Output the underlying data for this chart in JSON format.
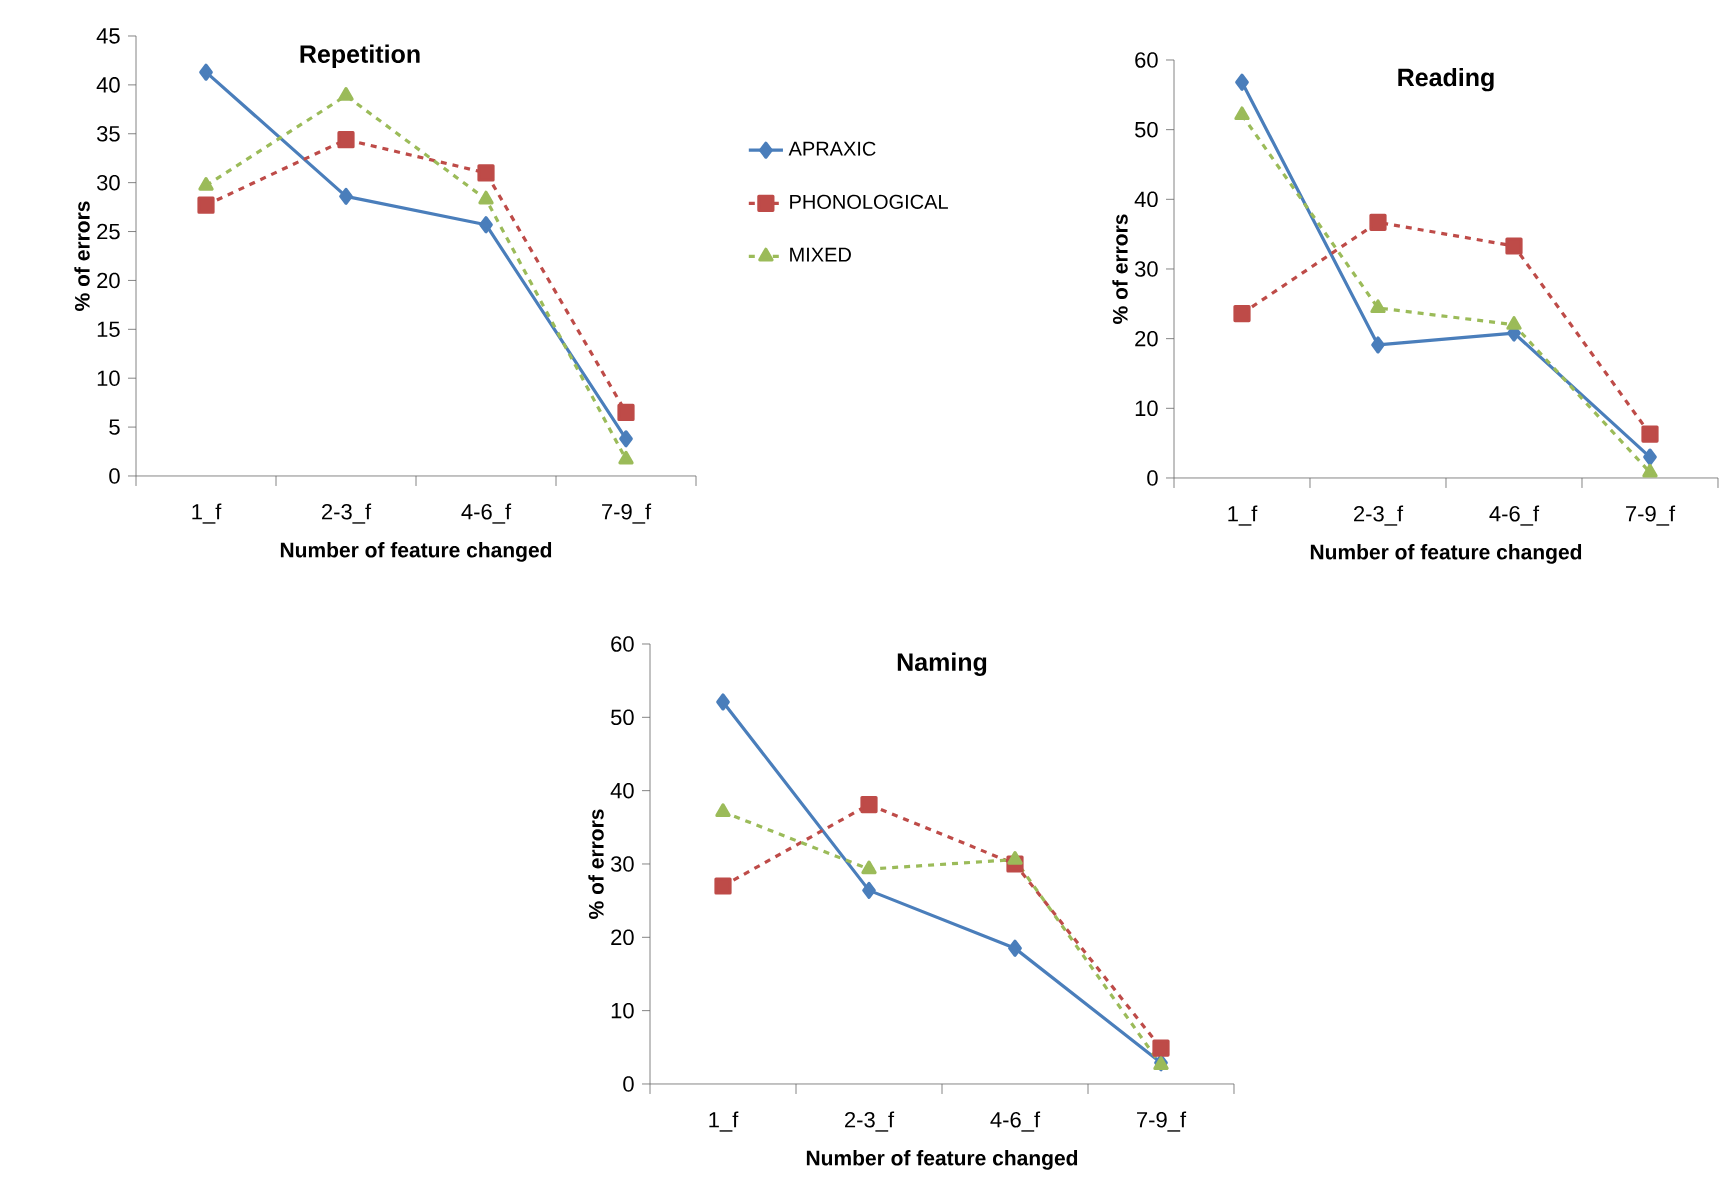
{
  "chart_data": [
    {
      "type": "line",
      "title": "Repetition",
      "xlabel": "Number of  feature changed",
      "ylabel": "% of errors",
      "categories": [
        "1_f",
        "2-3_f",
        "4-6_f",
        "7-9_f"
      ],
      "ylim": [
        0,
        45
      ],
      "yticks": [
        0,
        5,
        10,
        15,
        20,
        25,
        30,
        35,
        40,
        45
      ],
      "legend": "right",
      "series": [
        {
          "name": "APRAXIC",
          "color": "#4a7ebb",
          "marker": "diamond",
          "line_style": "solid",
          "values": [
            41.3,
            28.6,
            25.7,
            3.8
          ]
        },
        {
          "name": "PHONOLOGICAL",
          "color": "#be4b48",
          "marker": "square",
          "line_style": "dashed",
          "values": [
            27.7,
            34.4,
            31.0,
            6.5
          ]
        },
        {
          "name": "MIXED",
          "color": "#9bbb59",
          "marker": "triangle",
          "line_style": "dashed",
          "values": [
            29.7,
            38.9,
            28.3,
            1.7
          ]
        }
      ]
    },
    {
      "type": "line",
      "title": "Reading",
      "xlabel": "Number of  feature changed",
      "ylabel": "% of errors",
      "categories": [
        "1_f",
        "2-3_f",
        "4-6_f",
        "7-9_f"
      ],
      "ylim": [
        0,
        60
      ],
      "yticks": [
        0,
        10,
        20,
        30,
        40,
        50,
        60
      ],
      "series": [
        {
          "color": "#4a7ebb",
          "marker": "diamond",
          "line_style": "solid",
          "values": [
            56.8,
            19.1,
            20.8,
            3.0
          ]
        },
        {
          "color": "#be4b48",
          "marker": "square",
          "line_style": "dashed",
          "values": [
            23.6,
            36.7,
            33.3,
            6.3
          ]
        },
        {
          "color": "#9bbb59",
          "marker": "triangle",
          "line_style": "dashed",
          "values": [
            52.1,
            24.4,
            22.0,
            0.8
          ]
        }
      ]
    },
    {
      "type": "line",
      "title": "Naming",
      "xlabel": "Number of  feature changed",
      "ylabel": "% of errors",
      "categories": [
        "1_f",
        "2-3_f",
        "4-6_f",
        "7-9_f"
      ],
      "ylim": [
        0,
        60
      ],
      "yticks": [
        0,
        10,
        20,
        30,
        40,
        50,
        60
      ],
      "series": [
        {
          "color": "#4a7ebb",
          "marker": "diamond",
          "line_style": "solid",
          "values": [
            52.1,
            26.4,
            18.5,
            2.9
          ]
        },
        {
          "color": "#be4b48",
          "marker": "square",
          "line_style": "dashed",
          "values": [
            27.0,
            38.1,
            30.0,
            4.9
          ]
        },
        {
          "color": "#9bbb59",
          "marker": "triangle",
          "line_style": "dashed",
          "values": [
            37.1,
            29.3,
            30.6,
            2.6
          ]
        }
      ]
    }
  ]
}
